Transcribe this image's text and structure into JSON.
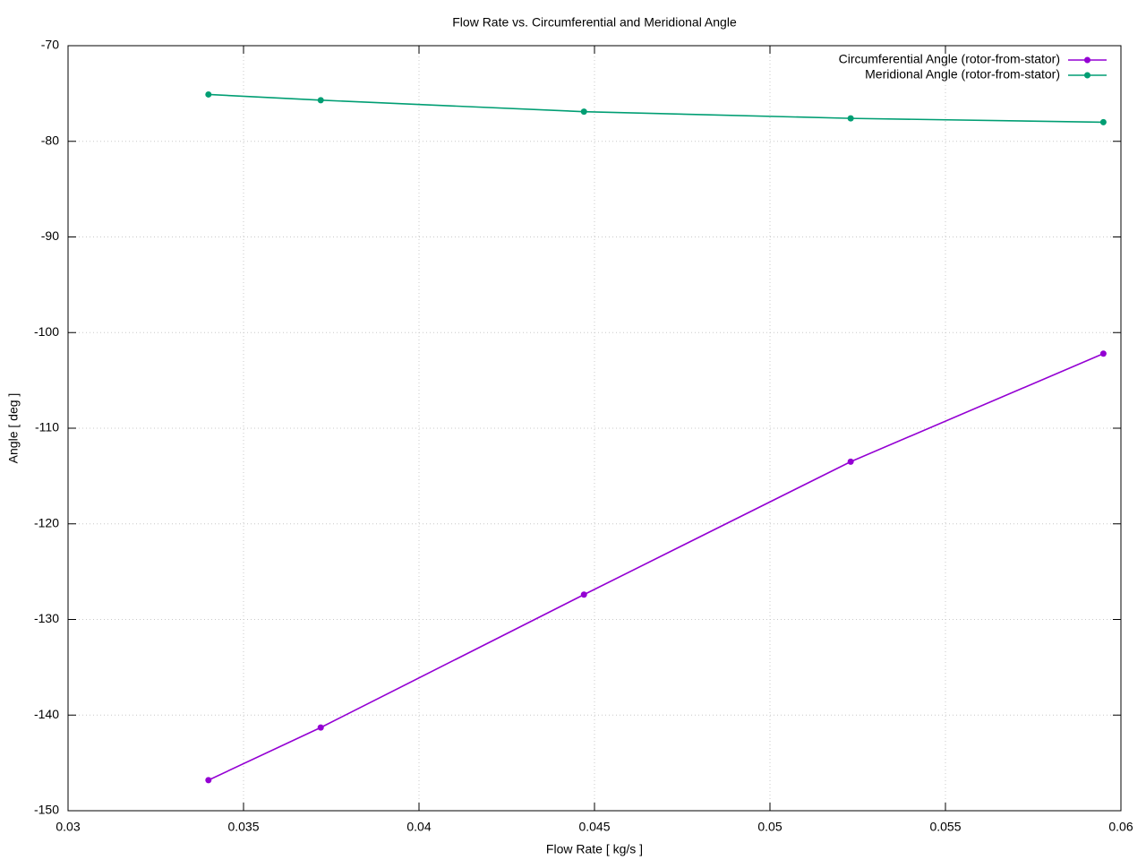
{
  "chart_data": {
    "type": "line",
    "title": "Flow Rate vs. Circumferential and Meridional Angle",
    "xlabel": "Flow Rate [ kg/s ]",
    "ylabel": "Angle [ deg ]",
    "x": [
      0.034,
      0.0372,
      0.0447,
      0.0523,
      0.0595
    ],
    "series": [
      {
        "name": "Circumferential Angle (rotor-from-stator)",
        "color": "#9400d3",
        "values": [
          -146.8,
          -141.3,
          -127.4,
          -113.5,
          -102.2
        ]
      },
      {
        "name": "Meridional Angle (rotor-from-stator)",
        "color": "#009e73",
        "values": [
          -75.1,
          -75.7,
          -76.9,
          -77.6,
          -78.0
        ]
      }
    ],
    "xlim": [
      0.03,
      0.06
    ],
    "xticks": [
      0.03,
      0.035,
      0.04,
      0.045,
      0.05,
      0.055,
      0.06
    ],
    "ylim": [
      -150,
      -70
    ],
    "yticks": [
      -150,
      -140,
      -130,
      -120,
      -110,
      -100,
      -90,
      -80,
      -70
    ],
    "grid": true,
    "legend": "top-right"
  }
}
